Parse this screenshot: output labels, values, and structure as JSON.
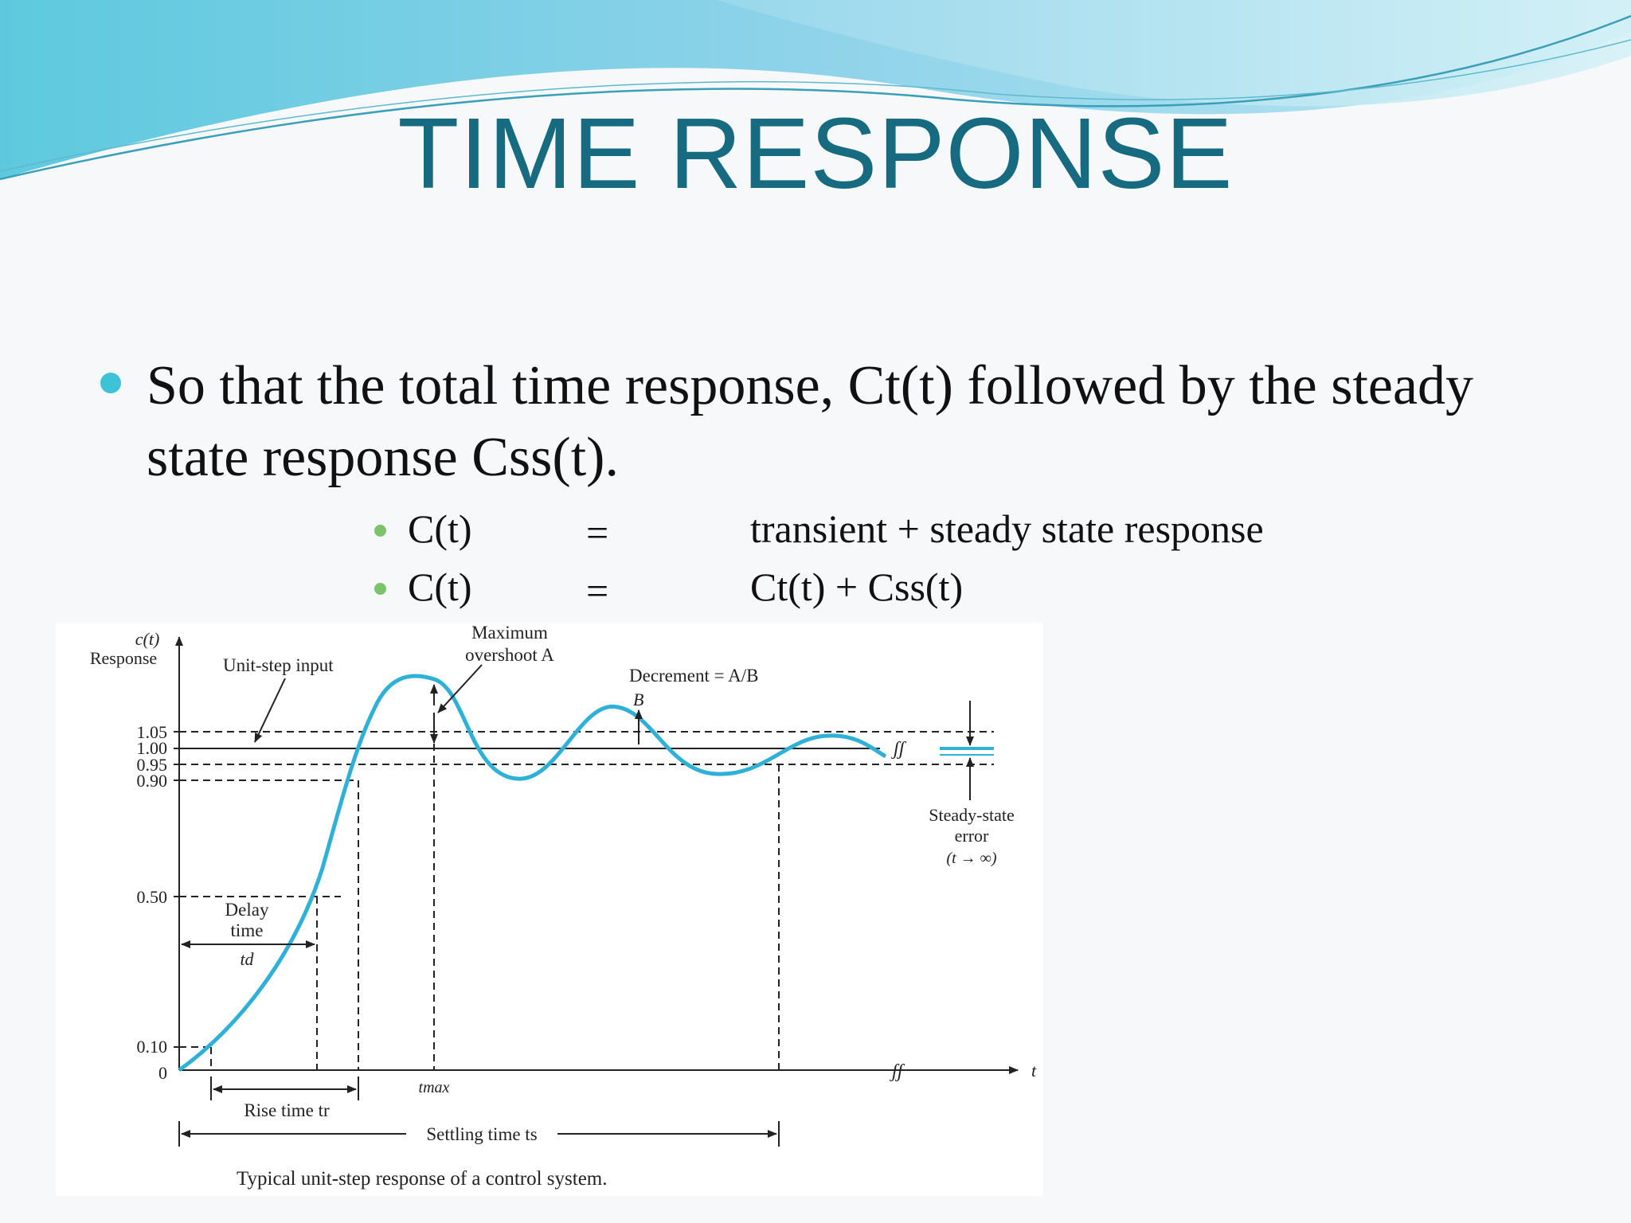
{
  "title": "TIME RESPONSE",
  "bullet": "So that the total time response, Ct(t) followed by the steady state response Css(t).",
  "equations": [
    {
      "lhs": "C(t)",
      "eq": "=",
      "rhs": "transient + steady state response"
    },
    {
      "lhs": "C(t)",
      "eq": "=",
      "rhs": "Ct(t) + Css(t)"
    }
  ],
  "figure": {
    "y_axis_label_1": "c(t)",
    "y_axis_label_2": "Response",
    "x_axis_label": "t",
    "y_ticks": [
      "1.05",
      "1.00",
      "0.95",
      "0.90",
      "0.50",
      "0.10",
      "0"
    ],
    "unit_step": "Unit-step input",
    "max_overshoot_1": "Maximum",
    "max_overshoot_2": "overshoot A",
    "decrement": "Decrement = A/B",
    "b_label": "B",
    "steady_1": "Steady-state",
    "steady_2": "error",
    "steady_3": "(t → ∞)",
    "delay_1": "Delay",
    "delay_2": "time",
    "td": "td",
    "tmax": "tmax",
    "rise": "Rise time tr",
    "settling": "Settling time ts",
    "caption": "Typical unit-step response of a control system.",
    "break_mark": "ʃʃ",
    "curve_color": "#2fb0d6"
  },
  "colors": {
    "title": "#166b80",
    "bullet": "#3cc3d8",
    "sub_bullet": "#7cc36d"
  }
}
